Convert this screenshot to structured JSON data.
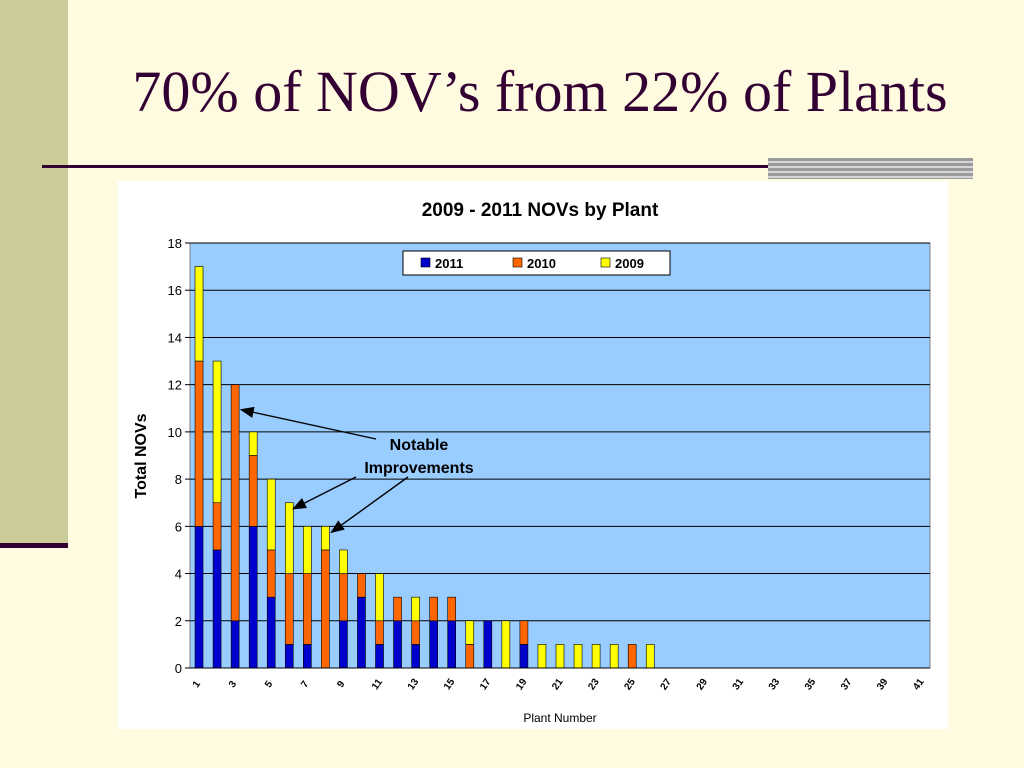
{
  "slide": {
    "title": "70% of NOV’s from 22% of Plants"
  },
  "chart_data": {
    "type": "bar",
    "stacked": true,
    "title": "2009 - 2011 NOVs by Plant",
    "xlabel": "Plant Number",
    "ylabel": "Total NOVs",
    "ylim": [
      0,
      18
    ],
    "yticks": [
      "0",
      "2",
      "4",
      "6",
      "8",
      "10",
      "12",
      "14",
      "16",
      "18"
    ],
    "categories": [
      "1",
      "2",
      "3",
      "4",
      "5",
      "6",
      "7",
      "8",
      "9",
      "10",
      "11",
      "12",
      "13",
      "14",
      "15",
      "16",
      "17",
      "18",
      "19",
      "20",
      "21",
      "22",
      "23",
      "24",
      "25",
      "26",
      "27",
      "28",
      "29",
      "30",
      "31",
      "32",
      "33",
      "34",
      "35",
      "36",
      "37",
      "38",
      "39",
      "40",
      "41"
    ],
    "x_tick_labels": [
      "1",
      "3",
      "5",
      "7",
      "9",
      "11",
      "13",
      "15",
      "17",
      "19",
      "21",
      "23",
      "25",
      "27",
      "29",
      "31",
      "33",
      "35",
      "37",
      "39",
      "41"
    ],
    "grid": true,
    "legend_position": "top-center",
    "series": [
      {
        "name": "2011",
        "color": "#0000cc",
        "values": [
          6,
          5,
          2,
          6,
          3,
          1,
          1,
          0,
          2,
          3,
          1,
          2,
          1,
          2,
          2,
          0,
          2,
          0,
          1,
          0,
          0,
          0,
          0,
          0,
          0,
          0,
          0,
          0,
          0,
          0,
          0,
          0,
          0,
          0,
          0,
          0,
          0,
          0,
          0,
          0,
          0
        ]
      },
      {
        "name": "2010",
        "color": "#ff6600",
        "values": [
          7,
          2,
          10,
          3,
          2,
          3,
          3,
          5,
          2,
          1,
          1,
          1,
          1,
          1,
          1,
          1,
          0,
          0,
          1,
          0,
          0,
          0,
          0,
          0,
          1,
          0,
          0,
          0,
          0,
          0,
          0,
          0,
          0,
          0,
          0,
          0,
          0,
          0,
          0,
          0,
          0
        ]
      },
      {
        "name": "2009",
        "color": "#ffff00",
        "values": [
          4,
          6,
          0,
          1,
          3,
          3,
          2,
          1,
          1,
          0,
          2,
          0,
          1,
          0,
          0,
          1,
          0,
          2,
          0,
          1,
          1,
          1,
          1,
          1,
          0,
          1,
          0,
          0,
          0,
          0,
          0,
          0,
          0,
          0,
          0,
          0,
          0,
          0,
          0,
          0,
          0
        ]
      }
    ],
    "annotations": [
      {
        "text": [
          "Notable",
          "Improvements"
        ],
        "points_to_categories": [
          "3",
          "6",
          "8"
        ]
      }
    ],
    "colors": {
      "plot_background": "#99ccff",
      "gridline": "#000000"
    }
  }
}
